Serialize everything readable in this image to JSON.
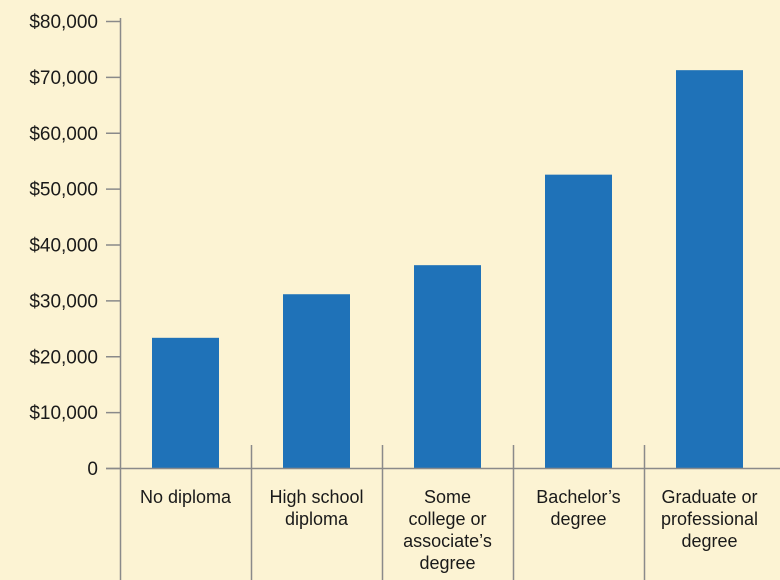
{
  "chart_data": {
    "type": "bar",
    "categories": [
      [
        "No diploma"
      ],
      [
        "High school",
        "diploma"
      ],
      [
        "Some",
        "college or",
        "associate’s",
        "degree"
      ],
      [
        "Bachelor’s",
        "degree"
      ],
      [
        "Graduate or",
        "professional",
        "degree"
      ]
    ],
    "values": [
      23300,
      31100,
      36300,
      52500,
      71200
    ],
    "y_ticks": [
      "0",
      "$10,000",
      "$20,000",
      "$30,000",
      "$40,000",
      "$50,000",
      "$60,000",
      "$70,000",
      "$80,000"
    ],
    "ylim": [
      0,
      80000
    ],
    "title": "",
    "xlabel": "",
    "ylabel": "",
    "grid": false,
    "bar_color": "#1f72b8",
    "axis_color": "#8a8a8a",
    "background_color": "#fcf3d3"
  }
}
